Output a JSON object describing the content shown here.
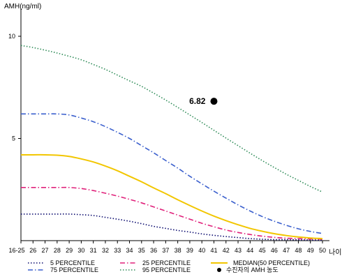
{
  "chart_data": {
    "type": "line",
    "ylabel": "AMH(ng/ml)",
    "xlabel": "나이",
    "ylim": [
      0,
      11
    ],
    "y_ticks": [
      {
        "value": 5,
        "label": "5"
      },
      {
        "value": 10,
        "label": "10"
      }
    ],
    "x_categories": [
      "16-25",
      "26",
      "27",
      "28",
      "29",
      "30",
      "31",
      "32",
      "33",
      "34",
      "35",
      "36",
      "37",
      "38",
      "39",
      "40",
      "41",
      "42",
      "43",
      "44",
      "45",
      "46",
      "47",
      "48",
      "49",
      "50"
    ],
    "grid": false,
    "legend_position": "bottom",
    "series": [
      {
        "name": "5 PERCENTILE",
        "color": "#0a0a6e",
        "dash": "dot",
        "values": [
          1.3,
          1.3,
          1.3,
          1.3,
          1.3,
          1.27,
          1.23,
          1.14,
          1.05,
          0.95,
          0.83,
          0.7,
          0.6,
          0.5,
          0.42,
          0.33,
          0.26,
          0.2,
          0.15,
          0.1,
          0.07,
          0.05,
          0.05,
          0.04,
          0.03,
          0.03
        ]
      },
      {
        "name": "25 PERCENTILE",
        "color": "#e0207a",
        "dash": "dashdot",
        "values": [
          2.6,
          2.6,
          2.6,
          2.6,
          2.6,
          2.55,
          2.45,
          2.32,
          2.18,
          2.02,
          1.85,
          1.65,
          1.45,
          1.25,
          1.05,
          0.85,
          0.68,
          0.52,
          0.4,
          0.3,
          0.22,
          0.16,
          0.12,
          0.1,
          0.08,
          0.07
        ]
      },
      {
        "name": "MEDIAN(50 PERCENTILE)",
        "color": "#f2c600",
        "dash": "solid",
        "values": [
          4.2,
          4.2,
          4.2,
          4.18,
          4.12,
          4.0,
          3.85,
          3.65,
          3.42,
          3.15,
          2.88,
          2.58,
          2.3,
          2.0,
          1.72,
          1.45,
          1.2,
          0.98,
          0.78,
          0.6,
          0.46,
          0.34,
          0.25,
          0.18,
          0.13,
          0.1
        ]
      },
      {
        "name": "75 PERCENTILE",
        "color": "#3a5fcd",
        "dash": "dashdot",
        "values": [
          6.2,
          6.2,
          6.2,
          6.2,
          6.15,
          6.0,
          5.82,
          5.58,
          5.3,
          5.0,
          4.65,
          4.3,
          3.92,
          3.55,
          3.15,
          2.78,
          2.42,
          2.08,
          1.75,
          1.45,
          1.18,
          0.95,
          0.75,
          0.58,
          0.45,
          0.35
        ]
      },
      {
        "name": "95 PERCENTILE",
        "color": "#2e8b57",
        "dash": "dot",
        "values": [
          9.55,
          9.45,
          9.32,
          9.18,
          9.02,
          8.85,
          8.62,
          8.38,
          8.1,
          7.82,
          7.55,
          7.22,
          6.88,
          6.52,
          6.15,
          5.78,
          5.4,
          5.02,
          4.65,
          4.28,
          3.92,
          3.58,
          3.25,
          2.95,
          2.65,
          2.38
        ]
      }
    ],
    "points": [
      {
        "name": "수진자의 AMH 농도",
        "x": "41",
        "value": 6.82,
        "label": "6.82",
        "color": "#000000"
      }
    ]
  }
}
